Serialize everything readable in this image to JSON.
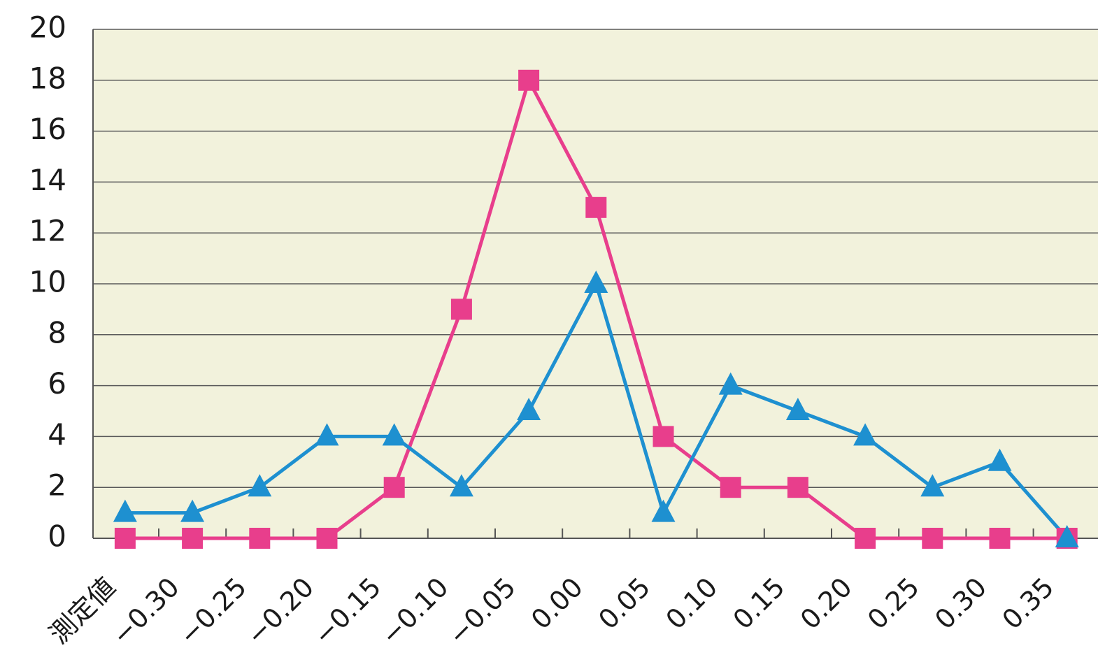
{
  "chart_data": {
    "type": "line",
    "xlabel": "測定値",
    "categories": [
      "−0.30",
      "−0.25",
      "−0.20",
      "−0.15",
      "−0.10",
      "−0.05",
      "0.00",
      "0.05",
      "0.10",
      "0.15",
      "0.20",
      "0.25",
      "0.30",
      "0.35"
    ],
    "ylim": [
      0,
      20
    ],
    "yticks": [
      0,
      2,
      4,
      6,
      8,
      10,
      12,
      14,
      16,
      18,
      20
    ],
    "grid": true,
    "x": [
      -0.325,
      -0.275,
      -0.225,
      -0.175,
      -0.125,
      -0.075,
      -0.025,
      0.025,
      0.075,
      0.125,
      0.175,
      0.225,
      0.275,
      0.325,
      0.375
    ],
    "series": [
      {
        "values": [
          0,
          0,
          0,
          0,
          2,
          9,
          18,
          13,
          4,
          2,
          2,
          0,
          0,
          0,
          0
        ],
        "color": "#e83e8c",
        "marker": "square"
      },
      {
        "values": [
          1,
          1,
          2,
          4,
          4,
          2,
          5,
          10,
          1,
          6,
          5,
          4,
          2,
          3,
          0
        ],
        "color": "#1e90d0",
        "marker": "triangle"
      }
    ],
    "colors": {
      "plot_background": "#f2f2dc",
      "grid": "#5a5a5a"
    }
  }
}
